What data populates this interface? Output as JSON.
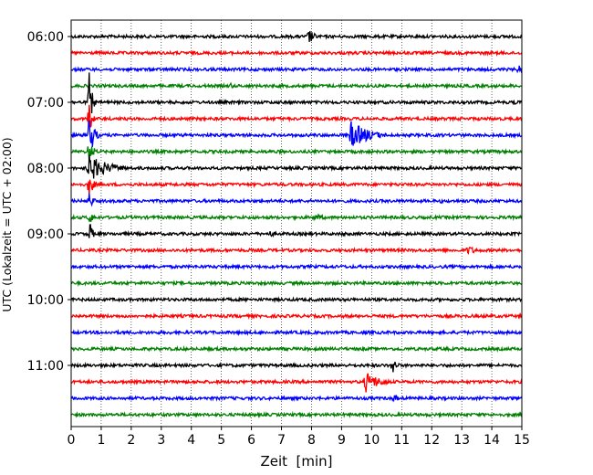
{
  "chart_data": {
    "type": "line",
    "title": "",
    "xlabel": "Zeit  [min]",
    "ylabel": "UTC (Lokalzeit = UTC + 02:00)",
    "xlim": [
      0,
      15
    ],
    "x_ticks": [
      "0",
      "1",
      "2",
      "3",
      "4",
      "5",
      "6",
      "7",
      "8",
      "9",
      "10",
      "11",
      "12",
      "13",
      "14",
      "15"
    ],
    "y_tick_labels": [
      "06:00",
      "07:00",
      "08:00",
      "09:00",
      "10:00",
      "11:00"
    ],
    "grid": "vertical-dotted",
    "colors": [
      "#000000",
      "#ff0000",
      "#0000ff",
      "#008000"
    ],
    "traces": [
      {
        "start": "06:00",
        "color": "#000000",
        "events": [
          {
            "t": 7.9,
            "amp": 10,
            "dur": 0.4
          }
        ]
      },
      {
        "start": "06:15",
        "color": "#ff0000",
        "events": []
      },
      {
        "start": "06:30",
        "color": "#0000ff",
        "events": [
          {
            "t": 14.9,
            "amp": 6,
            "dur": 0.2
          }
        ]
      },
      {
        "start": "06:45",
        "color": "#008000",
        "events": [
          {
            "t": 5.3,
            "amp": 4,
            "dur": 0.3
          }
        ]
      },
      {
        "start": "07:00",
        "color": "#000000",
        "events": [
          {
            "t": 0.6,
            "amp": 34,
            "dur": 0.2
          },
          {
            "t": 14.8,
            "amp": 4,
            "dur": 0.2
          }
        ]
      },
      {
        "start": "07:15",
        "color": "#ff0000",
        "events": [
          {
            "t": 0.6,
            "amp": 20,
            "dur": 0.2
          }
        ]
      },
      {
        "start": "07:30",
        "color": "#0000ff",
        "events": [
          {
            "t": 0.6,
            "amp": 30,
            "dur": 0.3
          },
          {
            "t": 9.3,
            "amp": 16,
            "dur": 1.3
          }
        ]
      },
      {
        "start": "07:45",
        "color": "#008000",
        "events": [
          {
            "t": 0.6,
            "amp": 14,
            "dur": 0.3
          }
        ]
      },
      {
        "start": "08:00",
        "color": "#000000",
        "events": [
          {
            "t": 0.55,
            "amp": 16,
            "dur": 1.4
          }
        ]
      },
      {
        "start": "08:15",
        "color": "#ff0000",
        "events": [
          {
            "t": 0.6,
            "amp": 14,
            "dur": 0.3
          }
        ]
      },
      {
        "start": "08:30",
        "color": "#0000ff",
        "events": [
          {
            "t": 0.6,
            "amp": 10,
            "dur": 0.3
          },
          {
            "t": 12.3,
            "amp": 3,
            "dur": 0.2
          }
        ]
      },
      {
        "start": "08:45",
        "color": "#008000",
        "events": [
          {
            "t": 0.6,
            "amp": 8,
            "dur": 0.3
          },
          {
            "t": 8.1,
            "amp": 5,
            "dur": 0.8
          }
        ]
      },
      {
        "start": "09:00",
        "color": "#000000",
        "events": [
          {
            "t": 0.6,
            "amp": 18,
            "dur": 0.2
          },
          {
            "t": 6.6,
            "amp": 4,
            "dur": 0.5
          },
          {
            "t": 9.0,
            "amp": 3,
            "dur": 0.6
          }
        ]
      },
      {
        "start": "09:15",
        "color": "#ff0000",
        "events": [
          {
            "t": 13.2,
            "amp": 6,
            "dur": 0.6
          }
        ]
      },
      {
        "start": "09:30",
        "color": "#0000ff",
        "events": []
      },
      {
        "start": "09:45",
        "color": "#008000",
        "events": []
      },
      {
        "start": "10:00",
        "color": "#000000",
        "events": []
      },
      {
        "start": "10:15",
        "color": "#ff0000",
        "events": []
      },
      {
        "start": "10:30",
        "color": "#0000ff",
        "events": [
          {
            "t": 13.0,
            "amp": 3,
            "dur": 0.3
          }
        ]
      },
      {
        "start": "10:45",
        "color": "#008000",
        "events": []
      },
      {
        "start": "11:00",
        "color": "#000000",
        "events": [
          {
            "t": 10.7,
            "amp": 10,
            "dur": 0.3
          }
        ]
      },
      {
        "start": "11:15",
        "color": "#ff0000",
        "events": [
          {
            "t": 9.8,
            "amp": 12,
            "dur": 1.0
          }
        ]
      },
      {
        "start": "11:30",
        "color": "#0000ff",
        "events": [
          {
            "t": 10.7,
            "amp": 5,
            "dur": 0.5
          }
        ]
      },
      {
        "start": "11:45",
        "color": "#008000",
        "events": []
      }
    ]
  }
}
